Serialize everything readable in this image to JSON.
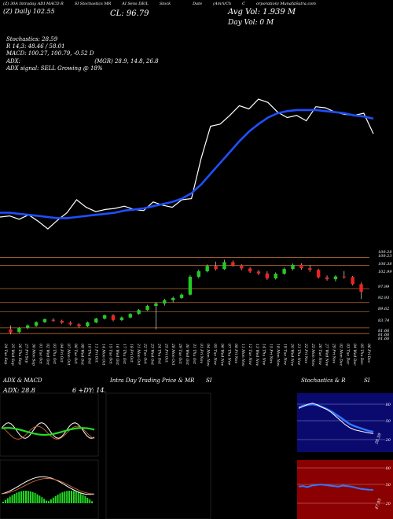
{
  "header": {
    "top_labels": [
      "(Z) 30A Intraday ADI MACD R",
      "SI Stochastics MR",
      "AI Sens DE/L",
      "Stock",
      "",
      "Date",
      "(Amri/Ch",
      "C",
      "orporation) MunafaSutra.com"
    ],
    "sub": "(Z) Daily   102.55",
    "close": "CL: 96.79",
    "avg_vol": "Avg Vol: 1.939 M",
    "day_vol": "Day Vol: 0   M"
  },
  "indicators": {
    "stochastics": "Stochastics: 28.59",
    "stoch_values": "R 14,3: 48.46  / 58.01",
    "macd": "MACD: 100.27,  100.79,  -0.52  D",
    "adx_label": "ADX:",
    "adx_values": "(MGR) 28.9,  14.8,  26.8",
    "adx_signal": "ADX  signal: SELL Growing @ 18%"
  },
  "chart_data": [
    {
      "type": "line",
      "series": [
        {
          "values": [
            103.2,
            103.3,
            103.0,
            103.4,
            102.8,
            102.1,
            102.9,
            103.6,
            104.8,
            104.1,
            103.7,
            103.9,
            104.0,
            104.2,
            103.9,
            103.8,
            104.6,
            104.3,
            104.1,
            104.8,
            104.9,
            108.6,
            111.6,
            111.8,
            112.6,
            113.5,
            113.2,
            114.1,
            113.8,
            112.9,
            112.4,
            112.6,
            112.1,
            113.4,
            113.3,
            112.9,
            112.7,
            112.6,
            112.8,
            110.9
          ]
        },
        {
          "values": [
            103.6,
            103.6,
            103.5,
            103.4,
            103.3,
            103.2,
            103.1,
            103.1,
            103.2,
            103.3,
            103.4,
            103.5,
            103.6,
            103.8,
            103.9,
            104.0,
            104.2,
            104.4,
            104.6,
            104.9,
            105.4,
            106.2,
            107.2,
            108.2,
            109.2,
            110.2,
            111.1,
            111.8,
            112.4,
            112.8,
            113.0,
            113.1,
            113.1,
            113.1,
            113.0,
            112.9,
            112.8,
            112.6,
            112.5,
            112.3
          ]
        }
      ]
    },
    {
      "type": "candlestick",
      "y_ticks": [
        "109.28",
        "109.23",
        "106.38",
        "102.99",
        "97.99",
        "92.93",
        "89.62",
        "83.74",
        "81.66",
        "81.66",
        "81.66"
      ],
      "x_ticks": [
        "24 Tue Sep",
        "25 Wed Sep",
        "26 Thu Sep",
        "27 Fri Sep",
        "30 Mon Sep",
        "01 Tue Oct",
        "02 Wed Oct",
        "03 Thu Oct",
        "04 Fri Oct",
        "07 Mon Oct",
        "08 Tue Oct",
        "09 Wed Oct",
        "10 Thu Oct",
        "11 Fri Oct",
        "14 Mon Oct",
        "15 Tue Oct",
        "16 Wed Oct",
        "17 Thu Oct",
        "18 Fri Oct",
        "21 Mon Oct",
        "22 Tue Oct",
        "23 Wed Oct",
        "24 Thu Oct",
        "25 Fri Oct",
        "28 Mon Oct",
        "29 Tue Oct",
        "30 Wed Oct",
        "31 Thu Oct",
        "01 Fri Nov",
        "04 Mon Nov",
        "05 Tue Nov",
        "06 Wed Nov",
        "07 Thu Nov",
        "08 Fri Nov",
        "11 Mon Nov",
        "12 Tue Nov",
        "13 Wed Nov",
        "14 Thu Nov",
        "15 Fri Nov",
        "18 Mon Nov",
        "19 Tue Nov",
        "20 Wed Nov",
        "21 Thu Nov",
        "22 Fri Nov",
        "25 Mon Nov",
        "26 Tue Nov",
        "27 Wed Nov",
        "29 Fri Nov",
        "02 Mon Dec",
        "03 Tue Dec",
        "04 Wed Dec",
        "05 Thu Dec",
        "06 Fri Dec"
      ],
      "candles": [
        {
          "o": 83.2,
          "h": 84.6,
          "l": 81.4,
          "c": 82.0
        },
        {
          "o": 82.2,
          "h": 84.0,
          "l": 81.9,
          "c": 83.7
        },
        {
          "o": 83.7,
          "h": 85.0,
          "l": 83.3,
          "c": 84.6
        },
        {
          "o": 84.5,
          "h": 86.1,
          "l": 84.0,
          "c": 85.8
        },
        {
          "o": 85.8,
          "h": 87.1,
          "l": 85.5,
          "c": 86.9
        },
        {
          "o": 86.7,
          "h": 87.2,
          "l": 85.9,
          "c": 86.3
        },
        {
          "o": 86.3,
          "h": 86.7,
          "l": 85.2,
          "c": 85.6
        },
        {
          "o": 85.6,
          "h": 86.1,
          "l": 84.6,
          "c": 85.0
        },
        {
          "o": 85.0,
          "h": 85.4,
          "l": 83.8,
          "c": 84.3
        },
        {
          "o": 84.3,
          "h": 86.0,
          "l": 84.0,
          "c": 85.7
        },
        {
          "o": 85.7,
          "h": 87.4,
          "l": 85.4,
          "c": 87.1
        },
        {
          "o": 87.1,
          "h": 88.6,
          "l": 86.8,
          "c": 88.3
        },
        {
          "o": 88.3,
          "h": 88.7,
          "l": 86.1,
          "c": 86.6
        },
        {
          "o": 86.6,
          "h": 87.9,
          "l": 86.2,
          "c": 87.5
        },
        {
          "o": 87.5,
          "h": 89.1,
          "l": 87.2,
          "c": 88.8
        },
        {
          "o": 88.8,
          "h": 90.6,
          "l": 88.5,
          "c": 90.2
        },
        {
          "o": 90.2,
          "h": 92.1,
          "l": 89.9,
          "c": 91.7
        },
        {
          "o": 91.7,
          "h": 93.1,
          "l": 83.2,
          "c": 92.6
        },
        {
          "o": 92.6,
          "h": 94.3,
          "l": 91.8,
          "c": 93.8
        },
        {
          "o": 93.8,
          "h": 95.1,
          "l": 93.0,
          "c": 94.6
        },
        {
          "o": 94.6,
          "h": 96.3,
          "l": 94.2,
          "c": 95.8
        },
        {
          "o": 95.8,
          "h": 102.9,
          "l": 95.5,
          "c": 102.3
        },
        {
          "o": 102.3,
          "h": 104.9,
          "l": 101.8,
          "c": 104.3
        },
        {
          "o": 104.3,
          "h": 106.8,
          "l": 103.9,
          "c": 106.2
        },
        {
          "o": 106.2,
          "h": 107.8,
          "l": 104.6,
          "c": 105.1
        },
        {
          "o": 105.1,
          "h": 108.5,
          "l": 104.8,
          "c": 107.6
        },
        {
          "o": 107.6,
          "h": 108.2,
          "l": 106.0,
          "c": 106.4
        },
        {
          "o": 106.4,
          "h": 106.9,
          "l": 104.7,
          "c": 105.3
        },
        {
          "o": 105.3,
          "h": 105.8,
          "l": 103.7,
          "c": 104.2
        },
        {
          "o": 104.2,
          "h": 104.7,
          "l": 102.9,
          "c": 103.5
        },
        {
          "o": 103.5,
          "h": 104.3,
          "l": 101.2,
          "c": 101.7
        },
        {
          "o": 101.7,
          "h": 103.9,
          "l": 101.3,
          "c": 103.4
        },
        {
          "o": 103.4,
          "h": 105.6,
          "l": 103.0,
          "c": 105.1
        },
        {
          "o": 105.1,
          "h": 107.1,
          "l": 104.6,
          "c": 106.6
        },
        {
          "o": 106.6,
          "h": 107.2,
          "l": 104.9,
          "c": 105.4
        },
        {
          "o": 105.4,
          "h": 106.5,
          "l": 104.1,
          "c": 104.8
        },
        {
          "o": 104.8,
          "h": 105.2,
          "l": 101.7,
          "c": 102.1
        },
        {
          "o": 102.1,
          "h": 102.8,
          "l": 100.9,
          "c": 101.4
        },
        {
          "o": 101.4,
          "h": 102.9,
          "l": 100.6,
          "c": 102.4
        },
        {
          "o": 102.4,
          "h": 104.4,
          "l": 101.6,
          "c": 102.2
        },
        {
          "o": 102.2,
          "h": 102.6,
          "l": 99.2,
          "c": 99.6
        },
        {
          "o": 99.6,
          "h": 100.2,
          "l": 94.2,
          "c": 96.8
        }
      ]
    }
  ],
  "panels": {
    "adx_title": "ADX  & MACD",
    "adx_value": "ADX: 28.8",
    "adx_extra": "6   +DY: 14.",
    "intraday_title": "Intra  Day Trading Price  & MR",
    "si_title": "SI",
    "stoch_title": "Stochastics & R",
    "stoch_si": "SI",
    "stoch_ticks": [
      "80",
      "50",
      "20"
    ],
    "stoch_value": "28.59",
    "rsi_ticks": [
      "80",
      "50",
      "20"
    ],
    "rsi_value": "47.95"
  }
}
